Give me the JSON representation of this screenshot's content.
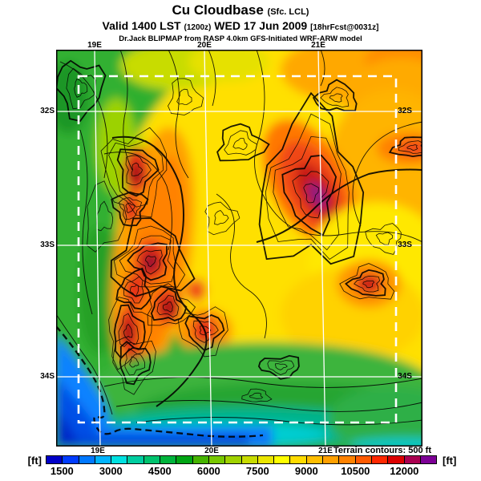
{
  "title": {
    "line1_main": "Cu Cloudbase",
    "line1_suffix": "(Sfc. LCL)",
    "line2_valid": "Valid 1400 LST",
    "line2_zulu": "(1200z)",
    "line2_date": "WED 17 Jun 2009",
    "line2_fcst": "[18hrFcst@0031z]",
    "line3": "Dr.Jack BLIPMAP from RASP 4.0km GFS-Initiated WRF-ARW model"
  },
  "map_plot": {
    "top_lon_labels": [
      "19E",
      "20E",
      "21E"
    ],
    "bottom_lon_labels": [
      "19E",
      "20E",
      "21E"
    ],
    "left_lat_labels": [
      "32S",
      "33S",
      "34S"
    ],
    "right_lat_labels": [
      "32S",
      "33S",
      "34S"
    ],
    "terrain_note": "Terrain contours: 500 ft"
  },
  "colorbar": {
    "unit_left": "[ft]",
    "unit_right": "[ft]",
    "tick_labels": [
      "1500",
      "3000",
      "4500",
      "6000",
      "7500",
      "9000",
      "10500",
      "12000"
    ],
    "segment_colors": [
      "#0000C8",
      "#003CFF",
      "#0078FF",
      "#00B4FF",
      "#00E1E1",
      "#00CDA0",
      "#00C36E",
      "#00B43C",
      "#00A514",
      "#46B400",
      "#78C800",
      "#A0D200",
      "#C8DC00",
      "#EBE600",
      "#FFFF00",
      "#FFDC00",
      "#FFBE00",
      "#FFA000",
      "#FF8200",
      "#FF5A00",
      "#FF2800",
      "#DC0000",
      "#AA0050",
      "#7D0096"
    ],
    "value_min": 1000,
    "value_max": 13000,
    "value_step": 500
  },
  "chart_data": {
    "type": "heatmap",
    "title": "Cu Cloudbase (Sfc. LCL)",
    "valid": "1400 LST (1200z) WED 17 Jun 2009",
    "colorbar_unit": "ft",
    "colorbar_ticks": [
      1500,
      3000,
      4500,
      6000,
      7500,
      9000,
      10500,
      12000
    ],
    "colorbar_range": [
      1000,
      13000
    ],
    "x_ticks": [
      "19E",
      "20E",
      "21E"
    ],
    "y_ticks": [
      "32S",
      "33S",
      "34S"
    ],
    "annotation": "Terrain contours: 500 ft",
    "legend_position": "bottom"
  }
}
